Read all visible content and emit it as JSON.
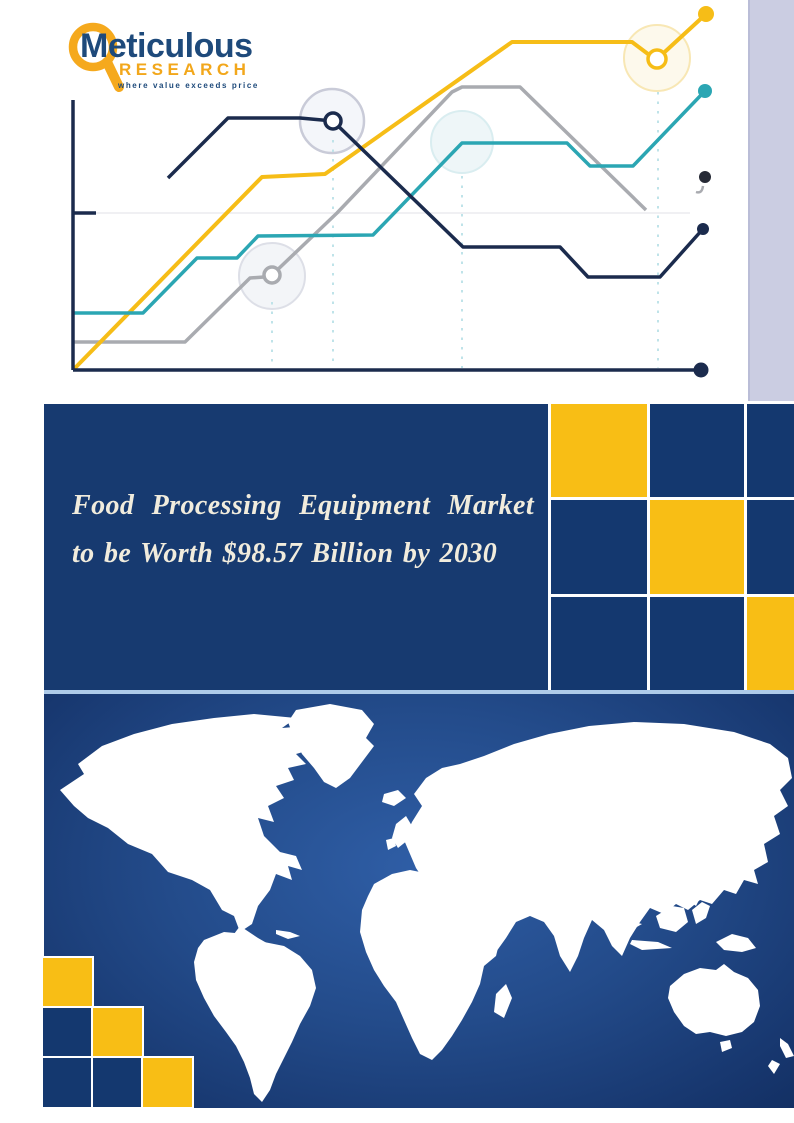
{
  "logo": {
    "name": "Meticulous",
    "division": "RESEARCH",
    "tagline": "where value exceeds price"
  },
  "title": {
    "line1": "Food Processing Equipment Market",
    "line2": "to be Worth $98.57 Billion by 2030"
  },
  "colors": {
    "navy_panel": "#173a70",
    "navy_square": "#14386f",
    "accent_yellow": "#f8be15",
    "line_navy": "#1b2b4d",
    "line_teal": "#2ba6b3",
    "line_gray": "#a9abb0",
    "lavender_bar": "#cbcde2",
    "title_text": "#f1ecdd",
    "map_border_light_blue": "#aecbe9",
    "logo_navy": "#1e4a7b",
    "logo_yellow": "#f2a71b"
  },
  "decor": {
    "big_grid_pattern": [
      [
        "yellow",
        "navy",
        "navy"
      ],
      [
        "navy",
        "yellow",
        "navy"
      ],
      [
        "navy",
        "navy",
        "yellow"
      ]
    ],
    "stair_grid_pattern": [
      [
        "yellow",
        "empty",
        "empty"
      ],
      [
        "navy",
        "yellow",
        "empty"
      ],
      [
        "navy",
        "navy",
        "yellow"
      ]
    ]
  }
}
